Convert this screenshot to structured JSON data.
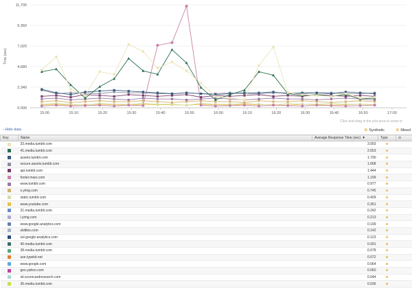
{
  "chart_data": {
    "type": "line",
    "ylabel": "Time (sec)",
    "y_ticks": [
      "0.000",
      "2,340",
      "4,680",
      "7,020",
      "9,360",
      "11,700"
    ],
    "ylim": [
      0,
      11700
    ],
    "x_ticks": [
      "15:00",
      "15:10",
      "15:20",
      "15:30",
      "15:40",
      "15:50",
      "16:00",
      "16:10",
      "16:20",
      "16:30",
      "16:40",
      "16:50",
      "17:00"
    ],
    "x": [
      "14:59",
      "15:04",
      "15:09",
      "15:14",
      "15:19",
      "15:24",
      "15:29",
      "15:34",
      "15:39",
      "15:44",
      "15:49",
      "15:54",
      "15:59",
      "16:04",
      "16:09",
      "16:14",
      "16:19",
      "16:24",
      "16:29",
      "16:34",
      "16:39",
      "16:44",
      "16:49",
      "16:54"
    ],
    "series": [
      {
        "name": "33.media.tumblr.com",
        "color": "#ece4b6",
        "values": [
          4300,
          5800,
          2100,
          1400,
          4100,
          3800,
          7200,
          6400,
          4500,
          5200,
          4200,
          2800,
          1300,
          1100,
          900,
          4800,
          6900,
          1700,
          1500,
          1400,
          1300,
          1600,
          1100,
          1200
        ]
      },
      {
        "name": "41.media.tumblr.com",
        "color": "#2a6e4e",
        "values": [
          4100,
          4400,
          2600,
          1100,
          2400,
          3300,
          5600,
          4200,
          3800,
          6600,
          5100,
          2300,
          900,
          1500,
          2000,
          4100,
          3700,
          1600,
          1400,
          1500,
          1300,
          1500,
          1000,
          1100
        ]
      },
      {
        "name": "assets.tumblr.com",
        "color": "#375a7d",
        "values": [
          2100,
          1700,
          1500,
          1800,
          1900,
          2000,
          1900,
          1800,
          1700,
          1600,
          1700,
          1600,
          1500,
          1600,
          1700,
          1700,
          1800,
          1600,
          1700,
          1700,
          1600,
          1800,
          1700,
          1600
        ]
      },
      {
        "name": "secure.assets.tumblr.com",
        "color": "#8c8ca0",
        "values": [
          2000,
          1600,
          1700,
          1700,
          1600,
          1800,
          1700,
          1700,
          1600,
          1600,
          1700,
          1600,
          1600,
          1700,
          1600,
          1600,
          1700,
          1700,
          1600,
          1700,
          1700,
          1600,
          1600,
          1700
        ]
      },
      {
        "name": "api.tumblr.com",
        "color": "#7a3b6a",
        "values": [
          1300,
          1400,
          1200,
          1500,
          1400,
          1300,
          1500,
          1400,
          1300,
          1400,
          1500,
          1200,
          1400,
          1300,
          1400,
          1500,
          1300,
          1400,
          1300,
          1500,
          1400,
          1300,
          1400,
          1300
        ]
      },
      {
        "name": "footer.mars.com",
        "color": "#c880a8",
        "values": [
          200,
          300,
          200,
          250,
          300,
          200,
          300,
          250,
          7100,
          7400,
          11550,
          300,
          200,
          250,
          300,
          200,
          300,
          250,
          200,
          300,
          250,
          200,
          250,
          300
        ]
      },
      {
        "name": "www.tumblr.com",
        "color": "#9a7aa0",
        "values": [
          1000,
          1100,
          900,
          1000,
          1100,
          1000,
          900,
          1100,
          1000,
          1000,
          900,
          1000,
          1100,
          1000,
          900,
          1000,
          1100,
          1000,
          1000,
          900,
          1000,
          1100,
          1000,
          900
        ]
      },
      {
        "name": "s.yimg.com",
        "color": "#d4b070",
        "values": [
          700,
          800,
          600,
          700,
          800,
          700,
          700,
          800,
          700,
          600,
          700,
          800,
          700,
          700,
          600,
          800,
          700,
          700,
          800,
          700,
          600,
          700,
          800,
          700
        ]
      },
      {
        "name": "static.tumblr.com",
        "color": "#cfe0a8",
        "values": [
          400,
          500,
          400,
          300,
          500,
          400,
          400,
          500,
          400,
          400,
          300,
          500,
          400,
          400,
          500,
          400,
          300,
          500,
          400,
          400,
          500,
          400,
          400,
          300
        ]
      },
      {
        "name": "www.youtube.com",
        "color": "#e8c040",
        "values": [
          350,
          400,
          300,
          350,
          400,
          350,
          300,
          400,
          350,
          350,
          300,
          400,
          350,
          300,
          400,
          350,
          350,
          300,
          400,
          350,
          300,
          350,
          400,
          350
        ]
      }
    ]
  },
  "chart": {
    "zoom_hint": "Click and drag in the plot area to zoom in"
  },
  "toolbar": {
    "hide_label": "‹ Hide data",
    "synthetic_label": "Synthetic",
    "mixed_label": "Mixed",
    "type_icon": "synthetic-icon"
  },
  "table": {
    "headers": {
      "key": "Key",
      "name": "Name",
      "avg": "Average Response Time (sec)",
      "type": "Type"
    },
    "type_glyph": "⊕",
    "rows": [
      {
        "name": "33.media.tumblr.com",
        "avg": "3.093",
        "color": "#ece4b6"
      },
      {
        "name": "41.media.tumblr.com",
        "avg": "2.653",
        "color": "#2a6e4e"
      },
      {
        "name": "assets.tumblr.com",
        "avg": "1.790",
        "color": "#375a7d"
      },
      {
        "name": "secure.assets.tumblr.com",
        "avg": "1.668",
        "color": "#8c8ca0"
      },
      {
        "name": "api.tumblr.com",
        "avg": "1.444",
        "color": "#7a3b6a"
      },
      {
        "name": "footer.mars.com",
        "avg": "1.199",
        "color": "#c880a8"
      },
      {
        "name": "www.tumblr.com",
        "avg": "0.977",
        "color": "#9a7aa0"
      },
      {
        "name": "s.yimg.com",
        "avg": "0.745",
        "color": "#d4b070"
      },
      {
        "name": "static.tumblr.com",
        "avg": "0.409",
        "color": "#cfe0a8"
      },
      {
        "name": "www.youtube.com",
        "avg": "0.351",
        "color": "#e8c040"
      },
      {
        "name": "31.media.tumblr.com",
        "avg": "0.242",
        "color": "#6a88c8"
      },
      {
        "name": "l.yimg.com",
        "avg": "0.213",
        "color": "#b0a8d8"
      },
      {
        "name": "www.google-analytics.com",
        "avg": "0.199",
        "color": "#6880b0"
      },
      {
        "name": "skittles.com",
        "avg": "0.142",
        "color": "#a8b0c8"
      },
      {
        "name": "ssl.google-analytics.com",
        "avg": "0.123",
        "color": "#2a4a80"
      },
      {
        "name": "40.media.tumblr.com",
        "avg": "0.091",
        "color": "#3a6a6a"
      },
      {
        "name": "38.media.tumblr.com",
        "avg": "0.078",
        "color": "#50a878"
      },
      {
        "name": "use.typekit.net",
        "avg": "0.072",
        "color": "#e08030"
      },
      {
        "name": "www.google.com",
        "avg": "0.064",
        "color": "#60a8d8"
      },
      {
        "name": "geo.yahoo.com",
        "avg": "0.060",
        "color": "#c040a0"
      },
      {
        "name": "sb.scorecardresearch.com",
        "avg": "0.044",
        "color": "#a8d8d0"
      },
      {
        "name": "36.media.tumblr.com",
        "avg": "0.036",
        "color": "#c8e040"
      }
    ]
  }
}
